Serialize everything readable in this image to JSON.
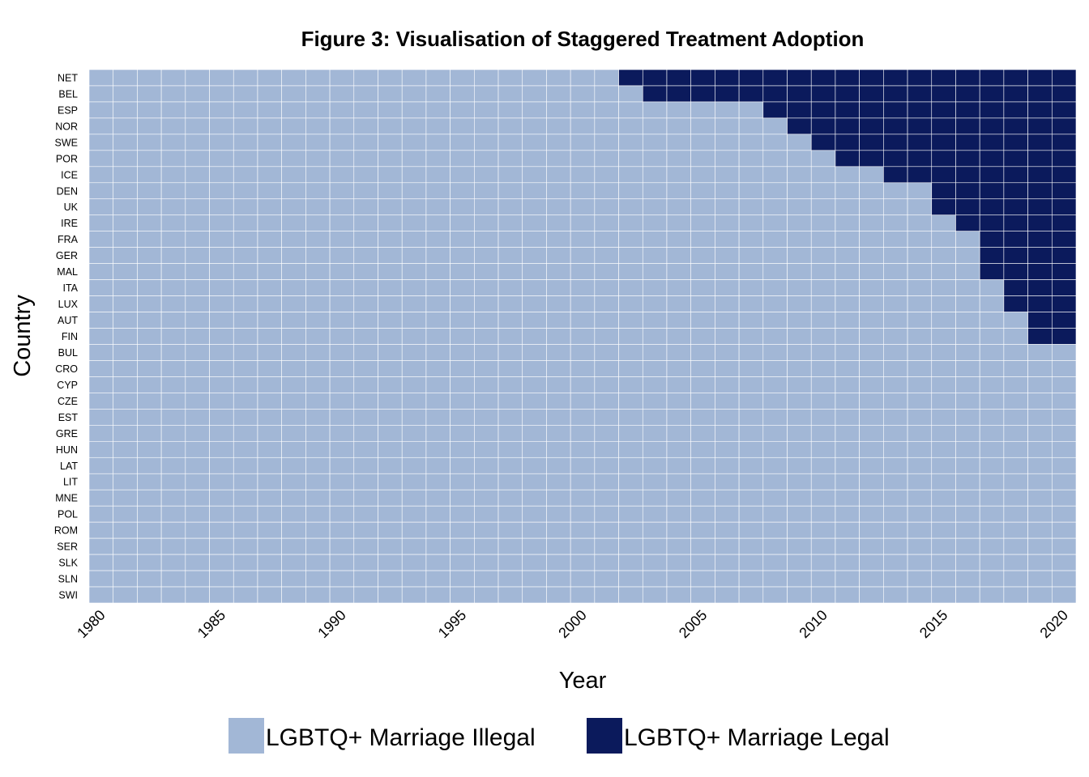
{
  "chart_data": {
    "type": "heatmap",
    "title": "Figure 3: Visualisation of Staggered Treatment Adoption",
    "xlabel": "Year",
    "ylabel": "Country",
    "x_range": [
      1980,
      2020
    ],
    "x_ticks": [
      "1980",
      "1985",
      "1990",
      "1995",
      "2000",
      "2005",
      "2010",
      "2015",
      "2020"
    ],
    "legend": {
      "position": "bottom",
      "entries": [
        {
          "label": "LGBTQ+ Marriage Illegal",
          "color": "#A2B7D6"
        },
        {
          "label": "LGBTQ+ Marriage Legal",
          "color": "#0B1A5C"
        }
      ]
    },
    "countries": [
      {
        "name": "NET",
        "adoption_year": 2002
      },
      {
        "name": "BEL",
        "adoption_year": 2003
      },
      {
        "name": "ESP",
        "adoption_year": 2008
      },
      {
        "name": "NOR",
        "adoption_year": 2009
      },
      {
        "name": "SWE",
        "adoption_year": 2010
      },
      {
        "name": "POR",
        "adoption_year": 2011
      },
      {
        "name": "ICE",
        "adoption_year": 2013
      },
      {
        "name": "DEN",
        "adoption_year": 2015
      },
      {
        "name": "UK",
        "adoption_year": 2015
      },
      {
        "name": "IRE",
        "adoption_year": 2016
      },
      {
        "name": "FRA",
        "adoption_year": 2017
      },
      {
        "name": "GER",
        "adoption_year": 2017
      },
      {
        "name": "MAL",
        "adoption_year": 2017
      },
      {
        "name": "ITA",
        "adoption_year": 2018
      },
      {
        "name": "LUX",
        "adoption_year": 2018
      },
      {
        "name": "AUT",
        "adoption_year": 2019
      },
      {
        "name": "FIN",
        "adoption_year": 2019
      },
      {
        "name": "BUL",
        "adoption_year": null
      },
      {
        "name": "CRO",
        "adoption_year": null
      },
      {
        "name": "CYP",
        "adoption_year": null
      },
      {
        "name": "CZE",
        "adoption_year": null
      },
      {
        "name": "EST",
        "adoption_year": null
      },
      {
        "name": "GRE",
        "adoption_year": null
      },
      {
        "name": "HUN",
        "adoption_year": null
      },
      {
        "name": "LAT",
        "adoption_year": null
      },
      {
        "name": "LIT",
        "adoption_year": null
      },
      {
        "name": "MNE",
        "adoption_year": null
      },
      {
        "name": "POL",
        "adoption_year": null
      },
      {
        "name": "ROM",
        "adoption_year": null
      },
      {
        "name": "SER",
        "adoption_year": null
      },
      {
        "name": "SLK",
        "adoption_year": null
      },
      {
        "name": "SLN",
        "adoption_year": null
      },
      {
        "name": "SWI",
        "adoption_year": null
      }
    ]
  }
}
